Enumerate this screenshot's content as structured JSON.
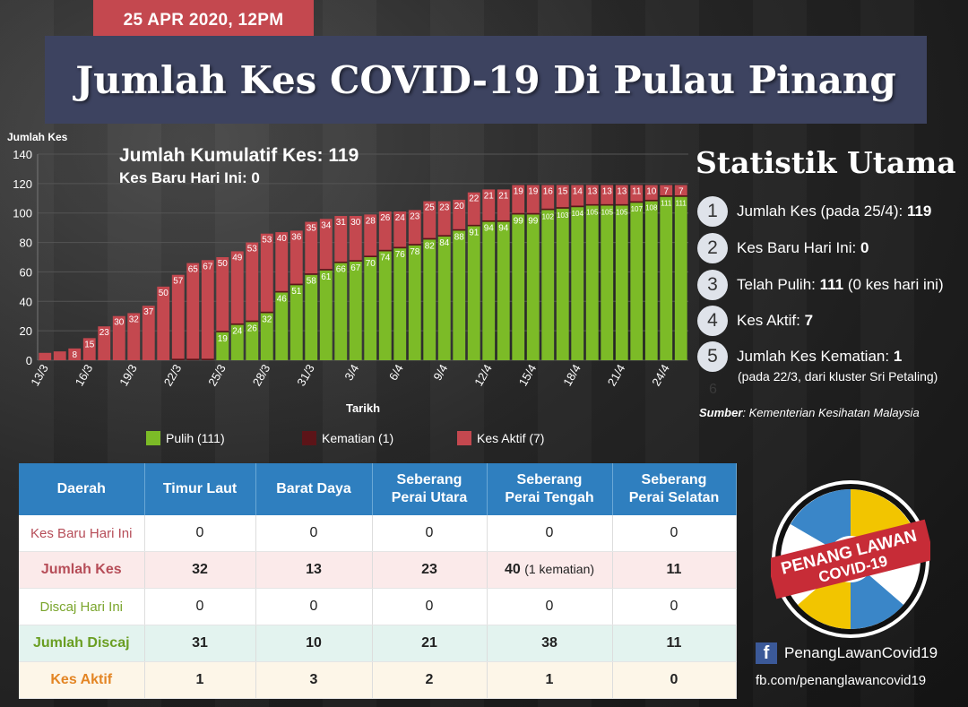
{
  "header": {
    "date": "25 APR 2020, 12PM",
    "title": "Jumlah Kes COVID-19 Di Pulau Pinang"
  },
  "summary": {
    "cumulative": "Jumlah Kumulatif Kes: 119",
    "new_today": "Kes Baru Hari Ini: 0"
  },
  "chart_data": {
    "type": "bar",
    "stacked": true,
    "ylabel": "Jumlah Kes",
    "xlabel": "Tarikh",
    "ylim": [
      0,
      140
    ],
    "yticks": [
      0,
      20,
      40,
      60,
      80,
      100,
      120,
      140
    ],
    "tick_labels": [
      "13/3",
      "16/3",
      "19/3",
      "22/3",
      "25/3",
      "28/3",
      "31/3",
      "3/4",
      "6/4",
      "9/4",
      "12/4",
      "15/4",
      "18/4",
      "21/4",
      "24/4"
    ],
    "grid": true,
    "legend_position": "bottom",
    "categories": [
      "13/3",
      "14/3",
      "15/3",
      "16/3",
      "17/3",
      "18/3",
      "19/3",
      "20/3",
      "21/3",
      "22/3",
      "23/3",
      "24/3",
      "25/3",
      "26/3",
      "27/3",
      "28/3",
      "29/3",
      "30/3",
      "31/3",
      "1/4",
      "2/4",
      "3/4",
      "4/4",
      "5/4",
      "6/4",
      "7/4",
      "8/4",
      "9/4",
      "10/4",
      "11/4",
      "12/4",
      "13/4",
      "14/4",
      "15/4",
      "16/4",
      "17/4",
      "18/4",
      "19/4",
      "20/4",
      "21/4",
      "22/4",
      "23/4",
      "24/4",
      "25/4"
    ],
    "series": [
      {
        "name": "Pulih (111)",
        "color": "#7cbb27",
        "values": [
          0,
          0,
          0,
          0,
          0,
          0,
          0,
          0,
          0,
          0,
          0,
          0,
          19,
          24,
          26,
          32,
          46,
          51,
          58,
          61,
          66,
          67,
          70,
          74,
          76,
          78,
          82,
          84,
          88,
          91,
          94,
          94,
          99,
          99,
          102,
          103,
          104,
          105,
          105,
          105,
          107,
          108,
          111,
          111
        ],
        "labels": [
          "",
          "",
          "",
          "",
          "",
          "",
          "",
          "",
          "",
          "",
          "",
          "",
          "19",
          "24",
          "26",
          "32",
          "46",
          "51",
          "58",
          "61",
          "66",
          "67",
          "70",
          "74",
          "76",
          "78",
          "82",
          "84",
          "88",
          "91",
          "94",
          "94",
          "99",
          "99",
          "102",
          "103",
          "104",
          "105",
          "105",
          "105",
          "107",
          "108",
          "111",
          "111"
        ]
      },
      {
        "name": "Kematian (1)",
        "color": "#5c1418",
        "values": [
          0,
          0,
          0,
          0,
          0,
          0,
          0,
          0,
          0,
          1,
          1,
          1,
          1,
          1,
          1,
          1,
          1,
          1,
          1,
          1,
          1,
          1,
          1,
          1,
          1,
          1,
          1,
          1,
          1,
          1,
          1,
          1,
          1,
          1,
          1,
          1,
          1,
          1,
          1,
          1,
          1,
          1,
          1,
          1
        ]
      },
      {
        "name": "Kes Aktif (7)",
        "color": "#c4484f",
        "values": [
          5,
          6,
          8,
          15,
          23,
          30,
          32,
          37,
          50,
          57,
          65,
          67,
          50,
          49,
          53,
          53,
          40,
          36,
          35,
          34,
          31,
          30,
          28,
          26,
          24,
          23,
          25,
          23,
          20,
          22,
          21,
          21,
          19,
          19,
          16,
          15,
          14,
          13,
          13,
          13,
          11,
          10,
          7,
          7
        ],
        "labels": [
          "",
          "",
          "8",
          "15",
          "23",
          "30",
          "32",
          "37",
          "50",
          "57",
          "65",
          "67",
          "50",
          "49",
          "53",
          "53",
          "40",
          "36",
          "35",
          "34",
          "31",
          "30",
          "28",
          "26",
          "24",
          "23",
          "25",
          "23",
          "20",
          "22",
          "21",
          "21",
          "19",
          "19",
          "16",
          "15",
          "14",
          "13",
          "13",
          "13",
          "11",
          "10",
          "7",
          "7"
        ]
      }
    ]
  },
  "stats": {
    "title": "Statistik Utama",
    "items": [
      {
        "num": "1",
        "label": "Jumlah Kes (pada 25/4):",
        "value": "119"
      },
      {
        "num": "2",
        "label": "Kes Baru Hari Ini:",
        "value": "0"
      },
      {
        "num": "3",
        "label": "Telah Pulih:",
        "value": "111",
        "extra": "(0 kes hari ini)"
      },
      {
        "num": "4",
        "label": "Kes Aktif:",
        "value": "7"
      },
      {
        "num": "5",
        "label": "Jumlah Kes Kematian:",
        "value": "1"
      }
    ],
    "item5_note": "(pada 22/3, dari kluster Sri Petaling)",
    "ghost": "6",
    "source_label": "Sumber",
    "source_text": ": Kementerian Kesihatan Malaysia"
  },
  "table": {
    "headers": [
      "Daerah",
      "Timur Laut",
      "Barat Daya",
      "Seberang\nPerai Utara",
      "Seberang\nPerai Tengah",
      "Seberang\nPerai Selatan"
    ],
    "rows": [
      {
        "label": "Kes Baru Hari Ini",
        "values": [
          "0",
          "0",
          "0",
          "0",
          "0"
        ]
      },
      {
        "label": "Jumlah Kes",
        "values": [
          "32",
          "13",
          "23",
          "40",
          "11"
        ],
        "note": "(1 kematian)"
      },
      {
        "label": "Discaj Hari Ini",
        "values": [
          "0",
          "0",
          "0",
          "0",
          "0"
        ]
      },
      {
        "label": "Jumlah Discaj",
        "values": [
          "31",
          "10",
          "21",
          "38",
          "11"
        ]
      },
      {
        "label": "Kes Aktif",
        "values": [
          "1",
          "3",
          "2",
          "1",
          "0"
        ]
      }
    ]
  },
  "logo": {
    "line1": "PENANG LAWAN",
    "line2": "COVID-19"
  },
  "social": {
    "name": "PenangLawanCovid19",
    "url": "fb.com/penanglawancovid19",
    "icon": "facebook-icon"
  }
}
